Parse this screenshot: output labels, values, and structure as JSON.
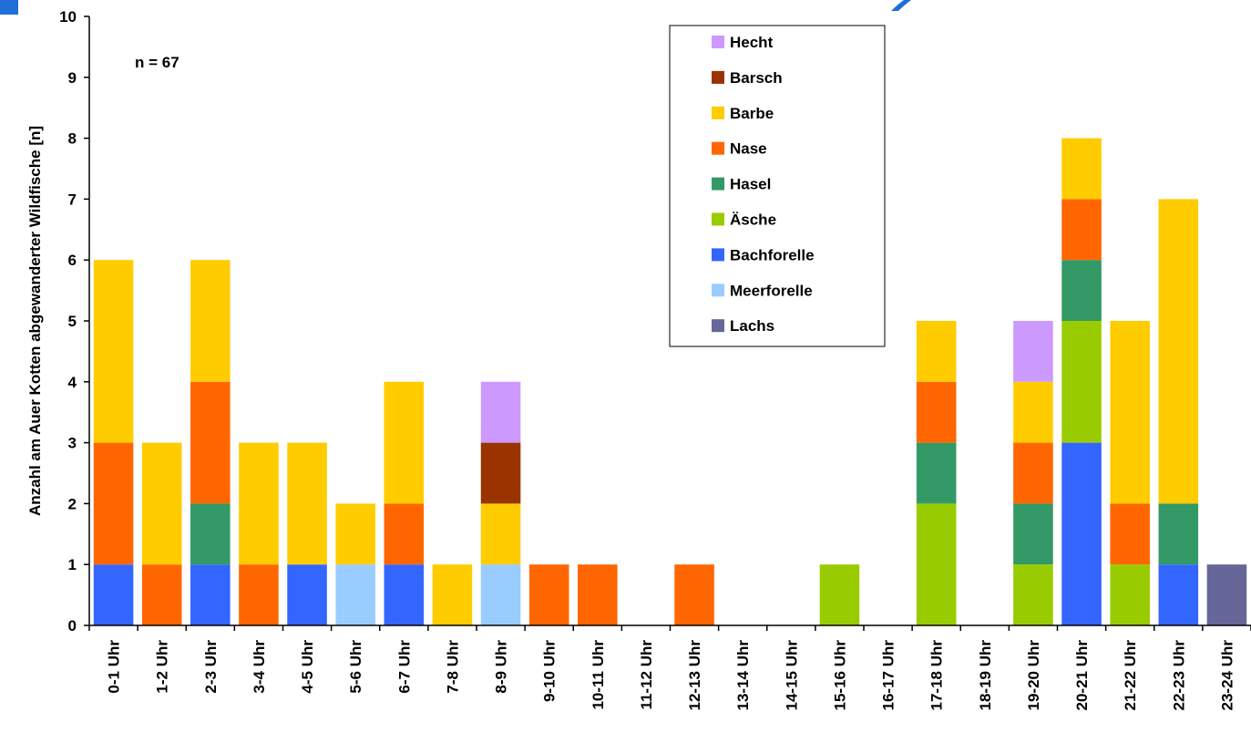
{
  "chart_data": {
    "type": "bar",
    "stacked": true,
    "ylabel": "Anzahl am Auer Kotten abgewanderter Wildfische [n]",
    "annotation": "n = 67",
    "ylim": [
      0,
      10
    ],
    "yticks": [
      "0",
      "1",
      "2",
      "3",
      "4",
      "5",
      "6",
      "7",
      "8",
      "9",
      "10"
    ],
    "grid": false,
    "legend_position": "top-center",
    "categories": [
      "0-1 Uhr",
      "1-2 Uhr",
      "2-3 Uhr",
      "3-4 Uhr",
      "4-5 Uhr",
      "5-6 Uhr",
      "6-7 Uhr",
      "7-8 Uhr",
      "8-9 Uhr",
      "9-10 Uhr",
      "10-11 Uhr",
      "11-12 Uhr",
      "12-13 Uhr",
      "13-14 Uhr",
      "14-15 Uhr",
      "15-16 Uhr",
      "16-17 Uhr",
      "17-18 Uhr",
      "18-19 Uhr",
      "19-20 Uhr",
      "20-21 Uhr",
      "21-22 Uhr",
      "22-23 Uhr",
      "23-24 Uhr"
    ],
    "series": [
      {
        "name": "Lachs",
        "color": "#666699",
        "values": [
          0,
          0,
          0,
          0,
          0,
          0,
          0,
          0,
          0,
          0,
          0,
          0,
          0,
          0,
          0,
          0,
          0,
          0,
          0,
          0,
          0,
          0,
          0,
          1
        ]
      },
      {
        "name": "Meerforelle",
        "color": "#99ccff",
        "values": [
          0,
          0,
          0,
          0,
          0,
          1,
          0,
          0,
          1,
          0,
          0,
          0,
          0,
          0,
          0,
          0,
          0,
          0,
          0,
          0,
          0,
          0,
          0,
          0
        ]
      },
      {
        "name": "Bachforelle",
        "color": "#3366ff",
        "values": [
          1,
          0,
          1,
          0,
          1,
          0,
          1,
          0,
          0,
          0,
          0,
          0,
          0,
          0,
          0,
          0,
          0,
          0,
          0,
          0,
          3,
          0,
          1,
          0
        ]
      },
      {
        "name": "Äsche",
        "color": "#99cc00",
        "values": [
          0,
          0,
          0,
          0,
          0,
          0,
          0,
          0,
          0,
          0,
          0,
          0,
          0,
          0,
          0,
          1,
          0,
          2,
          0,
          1,
          2,
          1,
          0,
          0
        ]
      },
      {
        "name": "Hasel",
        "color": "#339966",
        "values": [
          0,
          0,
          1,
          0,
          0,
          0,
          0,
          0,
          0,
          0,
          0,
          0,
          0,
          0,
          0,
          0,
          0,
          1,
          0,
          1,
          1,
          0,
          1,
          0
        ]
      },
      {
        "name": "Nase",
        "color": "#ff6600",
        "values": [
          2,
          1,
          2,
          1,
          0,
          0,
          1,
          0,
          0,
          1,
          1,
          0,
          1,
          0,
          0,
          0,
          0,
          1,
          0,
          1,
          1,
          1,
          0,
          0
        ]
      },
      {
        "name": "Barbe",
        "color": "#ffcc00",
        "values": [
          3,
          2,
          2,
          2,
          2,
          1,
          2,
          1,
          1,
          0,
          0,
          0,
          0,
          0,
          0,
          0,
          0,
          1,
          0,
          1,
          1,
          3,
          5,
          0
        ]
      },
      {
        "name": "Barsch",
        "color": "#993300",
        "values": [
          0,
          0,
          0,
          0,
          0,
          0,
          0,
          0,
          1,
          0,
          0,
          0,
          0,
          0,
          0,
          0,
          0,
          0,
          0,
          0,
          0,
          0,
          0,
          0
        ]
      },
      {
        "name": "Hecht",
        "color": "#cc99ff",
        "values": [
          0,
          0,
          0,
          0,
          0,
          0,
          0,
          0,
          1,
          0,
          0,
          0,
          0,
          0,
          0,
          0,
          0,
          0,
          0,
          1,
          0,
          0,
          0,
          0
        ]
      }
    ],
    "legend_order": [
      "Hecht",
      "Barsch",
      "Barbe",
      "Nase",
      "Hasel",
      "Äsche",
      "Bachforelle",
      "Meerforelle",
      "Lachs"
    ]
  }
}
